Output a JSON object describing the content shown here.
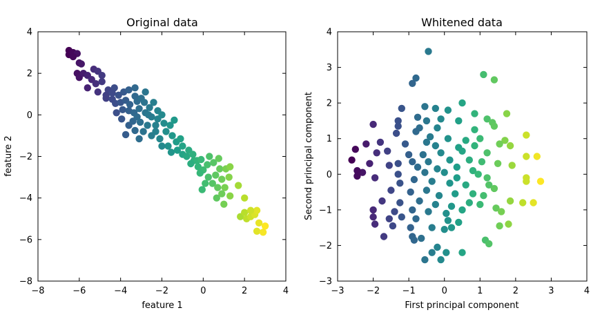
{
  "chart_data": [
    {
      "type": "scatter",
      "title": "Original data",
      "xlabel": "feature 1",
      "ylabel": "feature 2",
      "xlim": [
        -8,
        4
      ],
      "ylim": [
        -8,
        4
      ],
      "xticks": [
        -8,
        -6,
        -4,
        -2,
        0,
        2,
        4
      ],
      "yticks": [
        -8,
        -6,
        -4,
        -2,
        0,
        2,
        4
      ],
      "xtick_labels": [
        "−8",
        "−6",
        "−4",
        "−2",
        "0",
        "2",
        "4"
      ],
      "ytick_labels": [
        "−8",
        "−6",
        "−4",
        "−2",
        "0",
        "2",
        "4"
      ],
      "colormap": "viridis",
      "points": [
        [
          -6.5,
          3.1
        ],
        [
          -6.5,
          2.9
        ],
        [
          -6.3,
          3.0
        ],
        [
          -6.1,
          2.95
        ],
        [
          -6.3,
          2.8
        ],
        [
          -6.0,
          2.5
        ],
        [
          -5.9,
          2.45
        ],
        [
          -6.1,
          2.0
        ],
        [
          -6.0,
          1.8
        ],
        [
          -5.8,
          2.0
        ],
        [
          -5.6,
          1.9
        ],
        [
          -5.4,
          1.7
        ],
        [
          -5.3,
          2.2
        ],
        [
          -5.1,
          2.1
        ],
        [
          -4.9,
          1.9
        ],
        [
          -5.2,
          1.5
        ],
        [
          -4.9,
          1.6
        ],
        [
          -5.6,
          1.3
        ],
        [
          -5.1,
          1.1
        ],
        [
          -4.6,
          1.2
        ],
        [
          -4.7,
          0.95
        ],
        [
          -4.3,
          1.3
        ],
        [
          -4.4,
          1.05
        ],
        [
          -4.7,
          0.8
        ],
        [
          -4.4,
          0.75
        ],
        [
          -4.1,
          0.95
        ],
        [
          -4.25,
          0.55
        ],
        [
          -4.0,
          0.6
        ],
        [
          -3.85,
          1.1
        ],
        [
          -3.6,
          1.2
        ],
        [
          -3.75,
          0.7
        ],
        [
          -3.55,
          0.5
        ],
        [
          -3.3,
          1.3
        ],
        [
          -3.3,
          0.9
        ],
        [
          -3.2,
          0.65
        ],
        [
          -3.9,
          0.25
        ],
        [
          -3.6,
          0.2
        ],
        [
          -3.35,
          0.1
        ],
        [
          -3.1,
          0.3
        ],
        [
          -3.0,
          0.8
        ],
        [
          -2.8,
          1.1
        ],
        [
          -2.85,
          0.6
        ],
        [
          -3.95,
          -0.2
        ],
        [
          -3.6,
          -0.5
        ],
        [
          -3.4,
          -0.3
        ],
        [
          -3.2,
          -0.1
        ],
        [
          -3.05,
          -0.35
        ],
        [
          -2.8,
          0.1
        ],
        [
          -2.6,
          0.35
        ],
        [
          -2.5,
          -0.1
        ],
        [
          -2.7,
          -0.5
        ],
        [
          -2.9,
          -0.8
        ],
        [
          -3.3,
          -0.75
        ],
        [
          -2.4,
          0.6
        ],
        [
          -2.2,
          0.2
        ],
        [
          -2.2,
          -0.2
        ],
        [
          -2.0,
          0.0
        ],
        [
          -1.9,
          -0.4
        ],
        [
          -2.3,
          -0.8
        ],
        [
          -2.5,
          -1.0
        ],
        [
          -3.1,
          -1.15
        ],
        [
          -2.1,
          -1.15
        ],
        [
          -1.8,
          -0.8
        ],
        [
          -1.6,
          -0.5
        ],
        [
          -1.5,
          -1.0
        ],
        [
          -1.3,
          -1.3
        ],
        [
          -1.7,
          -1.5
        ],
        [
          -2.0,
          -1.5
        ],
        [
          -1.55,
          -1.8
        ],
        [
          -1.25,
          -1.7
        ],
        [
          -1.0,
          -1.5
        ],
        [
          -1.0,
          -1.9
        ],
        [
          -0.8,
          -2.0
        ],
        [
          -0.7,
          -1.7
        ],
        [
          -0.5,
          -1.9
        ],
        [
          -0.45,
          -2.2
        ],
        [
          -0.6,
          -2.35
        ],
        [
          -0.3,
          -2.2
        ],
        [
          -0.25,
          -2.5
        ],
        [
          -0.1,
          -2.15
        ],
        [
          0.0,
          -2.65
        ],
        [
          -0.15,
          -2.8
        ],
        [
          0.2,
          -2.4
        ],
        [
          0.3,
          -2.0
        ],
        [
          0.5,
          -2.3
        ],
        [
          0.6,
          -2.9
        ],
        [
          0.75,
          -2.1
        ],
        [
          0.8,
          -2.6
        ],
        [
          0.9,
          -3.1
        ],
        [
          1.1,
          -2.6
        ],
        [
          1.25,
          -3.0
        ],
        [
          1.3,
          -2.5
        ],
        [
          0.25,
          -3.0
        ],
        [
          0.1,
          -3.3
        ],
        [
          0.45,
          -3.3
        ],
        [
          0.7,
          -3.5
        ],
        [
          0.9,
          -3.8
        ],
        [
          1.05,
          -3.5
        ],
        [
          0.65,
          -4.0
        ],
        [
          1.0,
          -4.3
        ],
        [
          1.3,
          -3.9
        ],
        [
          1.7,
          -3.4
        ],
        [
          2.0,
          -4.0
        ],
        [
          -0.05,
          -3.6
        ],
        [
          -3.75,
          -0.95
        ],
        [
          -4.2,
          0.1
        ],
        [
          -2.3,
          -0.5
        ],
        [
          -1.4,
          -0.25
        ],
        [
          1.8,
          -4.9
        ],
        [
          2.0,
          -4.7
        ],
        [
          2.1,
          -5.0
        ],
        [
          2.3,
          -4.9
        ],
        [
          2.5,
          -4.8
        ],
        [
          2.6,
          -4.6
        ],
        [
          2.3,
          -4.6
        ],
        [
          2.7,
          -5.2
        ],
        [
          2.6,
          -5.6
        ],
        [
          3.0,
          -5.35
        ],
        [
          2.9,
          -5.65
        ],
        [
          -2.65,
          0.0
        ],
        [
          -1.1,
          -1.15
        ]
      ]
    },
    {
      "type": "scatter",
      "title": "Whitened data",
      "xlabel": "First principal component",
      "ylabel": "Second principal component",
      "xlim": [
        -3,
        4
      ],
      "ylim": [
        -3,
        4
      ],
      "xticks": [
        -3,
        -2,
        -1,
        0,
        1,
        2,
        3,
        4
      ],
      "yticks": [
        -3,
        -2,
        -1,
        0,
        1,
        2,
        3,
        4
      ],
      "xtick_labels": [
        "−3",
        "−2",
        "−1",
        "0",
        "1",
        "2",
        "3",
        "4"
      ],
      "ytick_labels": [
        "−3",
        "−2",
        "−1",
        "0",
        "1",
        "2",
        "3",
        "4"
      ],
      "colormap": "viridis",
      "points": [
        [
          -0.45,
          3.45
        ],
        [
          -0.8,
          2.7
        ],
        [
          -0.9,
          2.55
        ],
        [
          1.1,
          2.8
        ],
        [
          1.4,
          2.65
        ],
        [
          -1.2,
          1.85
        ],
        [
          -0.55,
          1.9
        ],
        [
          -0.25,
          1.85
        ],
        [
          0.5,
          2.0
        ],
        [
          0.1,
          1.8
        ],
        [
          0.85,
          1.7
        ],
        [
          1.75,
          1.7
        ],
        [
          -1.3,
          1.5
        ],
        [
          -0.75,
          1.6
        ],
        [
          -0.5,
          1.5
        ],
        [
          -0.1,
          1.55
        ],
        [
          0.4,
          1.5
        ],
        [
          1.2,
          1.55
        ],
        [
          1.35,
          1.45
        ],
        [
          -2.0,
          1.4
        ],
        [
          -1.3,
          1.35
        ],
        [
          -0.7,
          1.3
        ],
        [
          -0.2,
          1.3
        ],
        [
          0.85,
          1.25
        ],
        [
          1.4,
          1.35
        ],
        [
          -1.35,
          1.15
        ],
        [
          -0.8,
          1.2
        ],
        [
          -0.4,
          1.05
        ],
        [
          0.1,
          1.0
        ],
        [
          0.6,
          0.95
        ],
        [
          1.0,
          1.0
        ],
        [
          1.7,
          0.95
        ],
        [
          2.3,
          1.1
        ],
        [
          -2.2,
          0.85
        ],
        [
          -1.8,
          0.9
        ],
        [
          -1.1,
          0.85
        ],
        [
          -0.5,
          0.9
        ],
        [
          -0.25,
          0.8
        ],
        [
          0.4,
          0.75
        ],
        [
          0.85,
          0.8
        ],
        [
          1.55,
          0.85
        ],
        [
          -2.5,
          0.7
        ],
        [
          -1.6,
          0.65
        ],
        [
          -1.0,
          0.55
        ],
        [
          -0.6,
          0.55
        ],
        [
          -0.1,
          0.6
        ],
        [
          0.5,
          0.65
        ],
        [
          1.2,
          0.6
        ],
        [
          1.85,
          0.8
        ],
        [
          -2.6,
          0.4
        ],
        [
          -1.9,
          0.6
        ],
        [
          -1.3,
          0.3
        ],
        [
          -0.9,
          0.35
        ],
        [
          -0.45,
          0.35
        ],
        [
          0.15,
          0.4
        ],
        [
          0.7,
          0.4
        ],
        [
          1.05,
          0.35
        ],
        [
          2.3,
          0.5
        ],
        [
          2.6,
          0.5
        ],
        [
          -2.1,
          0.3
        ],
        [
          -1.55,
          0.25
        ],
        [
          -0.75,
          0.2
        ],
        [
          -0.2,
          0.15
        ],
        [
          0.35,
          0.2
        ],
        [
          0.8,
          0.1
        ],
        [
          1.5,
          0.3
        ],
        [
          1.9,
          0.25
        ],
        [
          -2.3,
          0.05
        ],
        [
          -2.45,
          0.1
        ],
        [
          -2.45,
          -0.05
        ],
        [
          -1.3,
          0.0
        ],
        [
          -0.55,
          0.05
        ],
        [
          0.0,
          0.05
        ],
        [
          0.35,
          -0.1
        ],
        [
          0.95,
          0.0
        ],
        [
          1.2,
          -0.1
        ],
        [
          2.3,
          -0.1
        ],
        [
          2.3,
          -0.2
        ],
        [
          2.7,
          -0.2
        ],
        [
          -1.95,
          -0.1
        ],
        [
          -1.25,
          -0.25
        ],
        [
          -0.85,
          -0.15
        ],
        [
          -0.35,
          -0.2
        ],
        [
          0.15,
          -0.25
        ],
        [
          0.6,
          -0.3
        ],
        [
          1.25,
          -0.3
        ],
        [
          1.4,
          -0.4
        ],
        [
          -1.5,
          -0.45
        ],
        [
          -0.95,
          -0.5
        ],
        [
          -0.5,
          -0.45
        ],
        [
          -0.15,
          -0.6
        ],
        [
          0.3,
          -0.55
        ],
        [
          0.8,
          -0.55
        ],
        [
          1.1,
          -0.6
        ],
        [
          1.85,
          -0.75
        ],
        [
          2.2,
          -0.8
        ],
        [
          2.5,
          -0.8
        ],
        [
          -1.75,
          -0.75
        ],
        [
          -1.25,
          -0.8
        ],
        [
          -0.7,
          -0.75
        ],
        [
          -0.25,
          -0.85
        ],
        [
          0.2,
          -0.9
        ],
        [
          0.7,
          -0.8
        ],
        [
          1.0,
          -0.85
        ],
        [
          1.45,
          -0.95
        ],
        [
          -2.0,
          -1.0
        ],
        [
          -1.4,
          -1.05
        ],
        [
          -0.9,
          -1.0
        ],
        [
          -0.45,
          -1.05
        ],
        [
          0.05,
          -1.1
        ],
        [
          0.5,
          -1.0
        ],
        [
          1.6,
          -1.05
        ],
        [
          -2.0,
          -1.2
        ],
        [
          -1.55,
          -1.25
        ],
        [
          -1.2,
          -1.2
        ],
        [
          -0.8,
          -1.25
        ],
        [
          0.1,
          -1.3
        ],
        [
          0.4,
          -1.35
        ],
        [
          1.8,
          -1.4
        ],
        [
          -1.95,
          -1.4
        ],
        [
          -1.45,
          -1.45
        ],
        [
          -0.95,
          -1.5
        ],
        [
          -0.35,
          -1.5
        ],
        [
          0.2,
          -1.5
        ],
        [
          1.55,
          -1.45
        ],
        [
          -1.7,
          -1.75
        ],
        [
          -0.9,
          -1.75
        ],
        [
          -0.65,
          -1.8
        ],
        [
          0.0,
          -1.55
        ],
        [
          1.15,
          -1.85
        ],
        [
          1.25,
          -1.95
        ],
        [
          -0.2,
          -2.05
        ],
        [
          -0.35,
          -2.2
        ],
        [
          0.05,
          -2.2
        ],
        [
          0.5,
          -2.2
        ],
        [
          -0.55,
          -2.4
        ],
        [
          -0.1,
          -2.4
        ],
        [
          -0.85,
          -1.85
        ]
      ]
    }
  ]
}
